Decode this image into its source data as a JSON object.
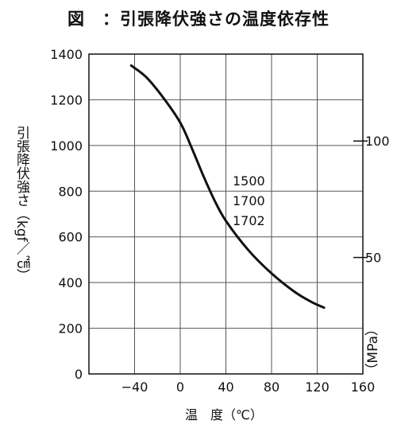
{
  "chart_data": {
    "type": "line",
    "title": "図　：引張降伏強さの温度依存性",
    "xlabel": "温　度（℃）",
    "ylabel": "引張降伏強さ（kgf／㎠）",
    "ylabel_right": "（MPa）",
    "xlim": [
      -80,
      160
    ],
    "ylim": [
      0,
      1400
    ],
    "x_ticks": [
      -40,
      0,
      40,
      80,
      120,
      160
    ],
    "x_tick_labels": [
      "−40",
      "0",
      "40",
      "80",
      "120",
      "160"
    ],
    "y_ticks": [
      0,
      200,
      400,
      600,
      800,
      1000,
      1200,
      1400
    ],
    "y_tick_labels": [
      "0",
      "200",
      "400",
      "600",
      "800",
      "1000",
      "1200",
      "1400"
    ],
    "y2_ticks_kgf": [
      509.9,
      1019.7
    ],
    "y2_tick_labels": [
      "50",
      "100"
    ],
    "grid": true,
    "series": [
      {
        "name": "",
        "x": [
          -43,
          -30,
          -15,
          0,
          10,
          20,
          30,
          40,
          60,
          80,
          100,
          115,
          126
        ],
        "y": [
          1350,
          1300,
          1210,
          1100,
          990,
          870,
          760,
          670,
          540,
          440,
          360,
          315,
          290
        ]
      }
    ],
    "annotations": [
      "1500",
      "1700",
      "1702"
    ]
  }
}
